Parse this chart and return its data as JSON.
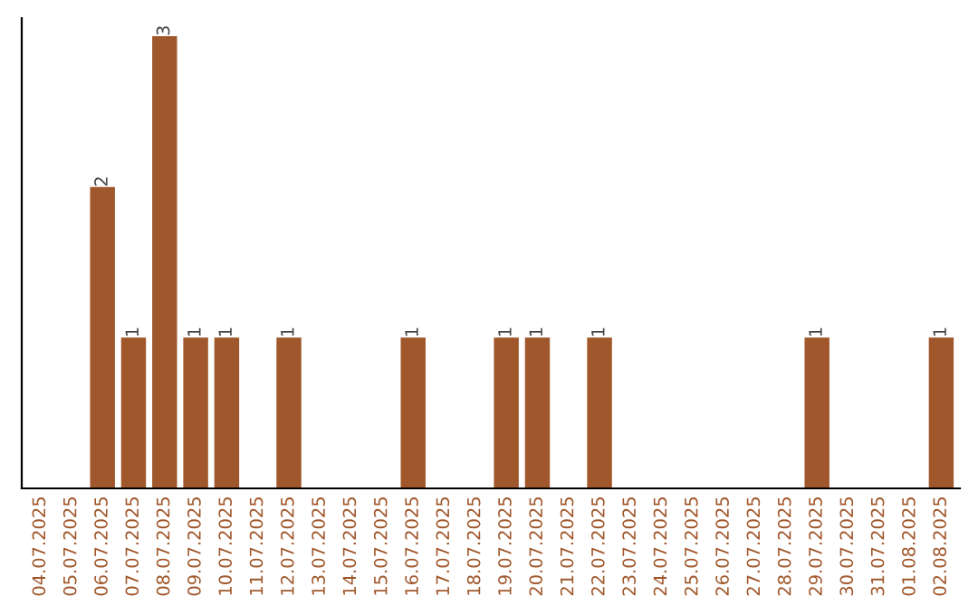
{
  "chart_data": {
    "type": "bar",
    "categories": [
      "04.07.2025",
      "05.07.2025",
      "06.07.2025",
      "07.07.2025",
      "08.07.2025",
      "09.07.2025",
      "10.07.2025",
      "11.07.2025",
      "12.07.2025",
      "13.07.2025",
      "14.07.2025",
      "15.07.2025",
      "16.07.2025",
      "17.07.2025",
      "18.07.2025",
      "19.07.2025",
      "20.07.2025",
      "21.07.2025",
      "22.07.2025",
      "23.07.2025",
      "24.07.2025",
      "25.07.2025",
      "26.07.2025",
      "27.07.2025",
      "28.07.2025",
      "29.07.2025",
      "30.07.2025",
      "31.07.2025",
      "01.08.2025",
      "02.08.2025"
    ],
    "values": [
      0,
      0,
      2,
      1,
      3,
      1,
      1,
      0,
      1,
      0,
      0,
      0,
      1,
      0,
      0,
      1,
      1,
      0,
      1,
      0,
      0,
      0,
      0,
      0,
      0,
      1,
      0,
      0,
      0,
      1
    ],
    "value_labels": [
      null,
      null,
      "2",
      "1",
      "3",
      "1",
      "1",
      null,
      "1",
      null,
      null,
      null,
      "1",
      null,
      null,
      "1",
      "1",
      null,
      "1",
      null,
      null,
      null,
      null,
      null,
      null,
      "1",
      null,
      null,
      null,
      "1"
    ],
    "color": "#a0572b",
    "tick_labels": "x",
    "grid": false,
    "legend": false
  }
}
